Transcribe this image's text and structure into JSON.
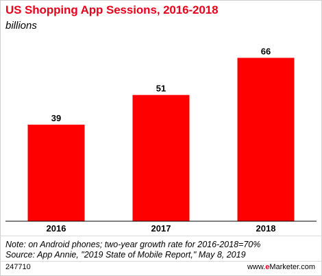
{
  "chart_data": {
    "type": "bar",
    "title": "US Shopping App Sessions, 2016-2018",
    "subtitle": "billions",
    "categories": [
      "2016",
      "2017",
      "2018"
    ],
    "values": [
      39,
      51,
      66
    ],
    "ylim": [
      0,
      70
    ],
    "grid": false,
    "bar_color": "#ff0000"
  },
  "footer": {
    "note": "Note: on Android phones; two-year growth rate for 2016-2018=70%",
    "source": "Source: App Annie, \"2019 State of Mobile Report,\" May 8, 2019",
    "id": "247710",
    "brand_prefix": "www.",
    "brand_e": "e",
    "brand_rest": "Marketer.com"
  }
}
